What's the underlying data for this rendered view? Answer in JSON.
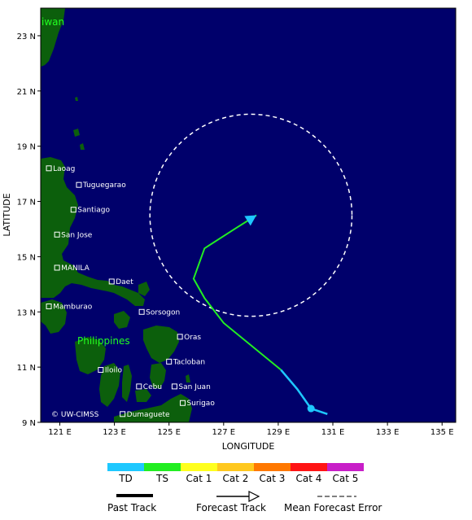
{
  "map": {
    "background_color": "#00006b",
    "land_color": "#0c5f0c",
    "ocean_color": "#00006b",
    "lon_range": [
      120.3,
      135.5
    ],
    "lat_range": [
      9.0,
      24.0
    ],
    "lon_ticks": [
      "121 E",
      "123 E",
      "125 E",
      "127 E",
      "129 E",
      "131 E",
      "133 E",
      "135 E"
    ],
    "lat_ticks": [
      "23 N",
      "21 N",
      "19 N",
      "17 N",
      "15 N",
      "13 N",
      "11 N",
      "9 N"
    ],
    "xlabel": "LONGITUDE",
    "ylabel": "LATITUDE",
    "country_labels": {
      "taiwan": "iwan",
      "philippines": "Philippines"
    },
    "watermark": "© UW-CIMSS",
    "cities": [
      {
        "name": "Laoag",
        "lon": 120.6,
        "lat": 18.2
      },
      {
        "name": "Tuguegarao",
        "lon": 121.7,
        "lat": 17.6
      },
      {
        "name": "Santiago",
        "lon": 121.5,
        "lat": 16.7
      },
      {
        "name": "San Jose",
        "lon": 120.9,
        "lat": 15.8
      },
      {
        "name": "MANILA",
        "lon": 120.9,
        "lat": 14.6
      },
      {
        "name": "Daet",
        "lon": 122.9,
        "lat": 14.1
      },
      {
        "name": "Mamburao",
        "lon": 120.6,
        "lat": 13.2
      },
      {
        "name": "Sorsogon",
        "lon": 124.0,
        "lat": 13.0
      },
      {
        "name": "Oras",
        "lon": 125.4,
        "lat": 12.1
      },
      {
        "name": "Tacloban",
        "lon": 125.0,
        "lat": 11.2
      },
      {
        "name": "Iloilo",
        "lon": 122.5,
        "lat": 10.9
      },
      {
        "name": "Cebu",
        "lon": 123.9,
        "lat": 10.3
      },
      {
        "name": "San Juan",
        "lon": 125.2,
        "lat": 10.3
      },
      {
        "name": "Surigao",
        "lon": 125.5,
        "lat": 9.7
      },
      {
        "name": "Dumaguete",
        "lon": 123.3,
        "lat": 9.3
      }
    ],
    "track": {
      "past_td": [
        [
          130.8,
          9.3
        ],
        [
          130.2,
          9.5
        ],
        [
          129.7,
          10.2
        ],
        [
          129.1,
          10.9
        ]
      ],
      "forecast_ts": [
        [
          129.1,
          10.9
        ],
        [
          127.0,
          12.6
        ],
        [
          126.3,
          13.5
        ],
        [
          125.9,
          14.2
        ],
        [
          126.3,
          15.3
        ],
        [
          127.4,
          16.0
        ],
        [
          128.2,
          16.5
        ]
      ],
      "current_position": [
        130.2,
        9.5
      ],
      "forecast_end": [
        128.2,
        16.5
      ]
    },
    "error_circle": {
      "center_lon": 128.0,
      "center_lat": 16.5,
      "radius_deg": 3.7
    }
  },
  "legend": {
    "categories": [
      {
        "label": "TD",
        "color": "#1ec8ff"
      },
      {
        "label": "TS",
        "color": "#22ee22"
      },
      {
        "label": "Cat 1",
        "color": "#ffff1e"
      },
      {
        "label": "Cat 2",
        "color": "#ffc81e"
      },
      {
        "label": "Cat 3",
        "color": "#ff7800"
      },
      {
        "label": "Cat 4",
        "color": "#ff1414"
      },
      {
        "label": "Cat 5",
        "color": "#c81ec8"
      }
    ],
    "past_track_label": "Past Track",
    "forecast_track_label": "Forecast Track",
    "mean_error_label": "Mean Forecast Error"
  }
}
